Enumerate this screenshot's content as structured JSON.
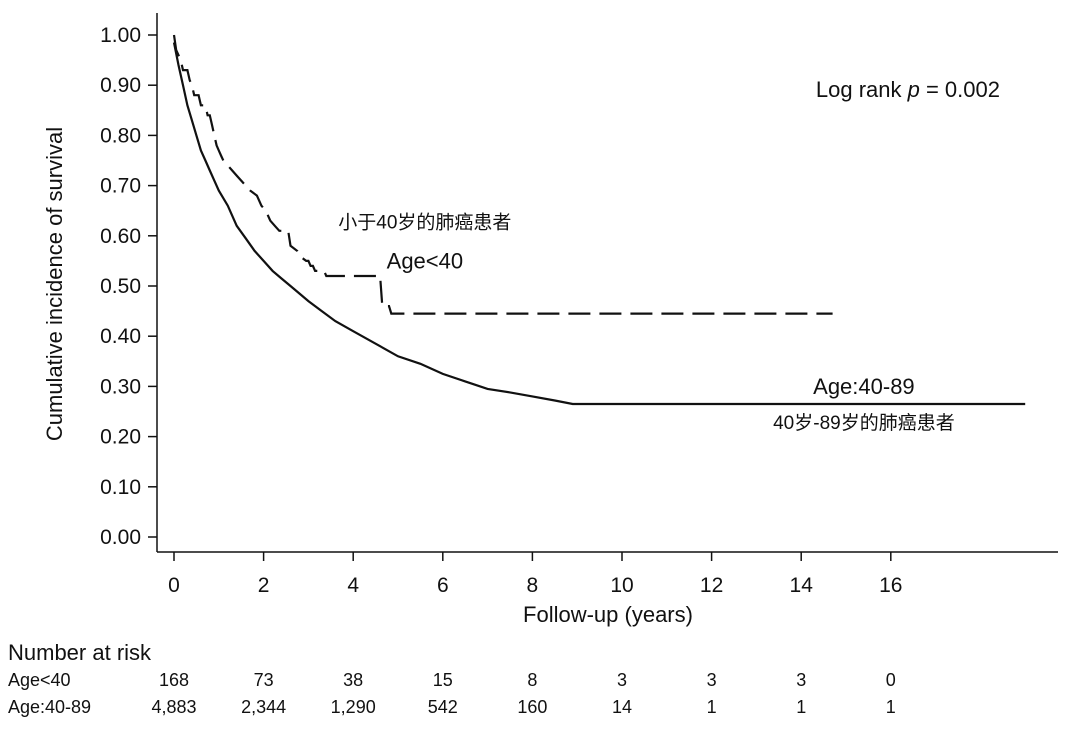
{
  "chart_data": {
    "type": "line",
    "subtype": "kaplan-meier",
    "title": "",
    "xlabel": "Follow-up (years)",
    "ylabel": "Cumulative incidence of survival",
    "xlim": [
      0,
      19.4
    ],
    "ylim": [
      0,
      1
    ],
    "x_ticks": [
      0,
      2,
      4,
      6,
      8,
      10,
      12,
      14,
      16
    ],
    "y_ticks": [
      0,
      0.1,
      0.2,
      0.3,
      0.4,
      0.5,
      0.6,
      0.7,
      0.8,
      0.9,
      1.0
    ],
    "y_tick_labels": [
      "0.00",
      "0.10",
      "0.20",
      "0.30",
      "0.40",
      "0.50",
      "0.60",
      "0.70",
      "0.80",
      "0.90",
      "1.00"
    ],
    "grid": false,
    "annotation": {
      "prefix": "Log rank ",
      "symbol": "p",
      "suffix": " = 0.002"
    },
    "series": [
      {
        "name": "Age<40",
        "label_zh": "小于40岁的肺癌患者",
        "style": "dashed",
        "label_at": [
          5.6,
          0.535
        ],
        "label_zh_at": [
          5.6,
          0.615
        ],
        "points": [
          [
            0,
            1.0
          ],
          [
            0.05,
            0.97
          ],
          [
            0.15,
            0.95
          ],
          [
            0.2,
            0.93
          ],
          [
            0.3,
            0.93
          ],
          [
            0.35,
            0.91
          ],
          [
            0.4,
            0.9
          ],
          [
            0.45,
            0.88
          ],
          [
            0.55,
            0.88
          ],
          [
            0.6,
            0.86
          ],
          [
            0.7,
            0.86
          ],
          [
            0.75,
            0.84
          ],
          [
            0.8,
            0.84
          ],
          [
            0.85,
            0.82
          ],
          [
            0.9,
            0.8
          ],
          [
            0.95,
            0.78
          ],
          [
            1.0,
            0.77
          ],
          [
            1.05,
            0.76
          ],
          [
            1.1,
            0.75
          ],
          [
            1.2,
            0.74
          ],
          [
            1.3,
            0.73
          ],
          [
            1.4,
            0.72
          ],
          [
            1.5,
            0.71
          ],
          [
            1.6,
            0.7
          ],
          [
            1.7,
            0.69
          ],
          [
            1.85,
            0.68
          ],
          [
            1.95,
            0.66
          ],
          [
            2.05,
            0.65
          ],
          [
            2.15,
            0.63
          ],
          [
            2.25,
            0.62
          ],
          [
            2.35,
            0.61
          ],
          [
            2.55,
            0.61
          ],
          [
            2.6,
            0.58
          ],
          [
            2.75,
            0.57
          ],
          [
            2.8,
            0.56
          ],
          [
            2.95,
            0.55
          ],
          [
            3.0,
            0.55
          ],
          [
            3.05,
            0.54
          ],
          [
            3.1,
            0.54
          ],
          [
            3.15,
            0.53
          ],
          [
            3.35,
            0.53
          ],
          [
            3.4,
            0.52
          ],
          [
            4.6,
            0.52
          ],
          [
            4.65,
            0.46
          ],
          [
            4.8,
            0.46
          ],
          [
            4.85,
            0.445
          ],
          [
            14.7,
            0.445
          ]
        ]
      },
      {
        "name": "Age:40-89",
        "label_zh": "40岁-89岁的肺癌患者",
        "style": "solid",
        "label_at": [
          15.4,
          0.285
        ],
        "label_zh_at": [
          15.4,
          0.215
        ],
        "points": [
          [
            0,
            0.985
          ],
          [
            0.1,
            0.94
          ],
          [
            0.2,
            0.9
          ],
          [
            0.3,
            0.86
          ],
          [
            0.4,
            0.83
          ],
          [
            0.5,
            0.8
          ],
          [
            0.6,
            0.77
          ],
          [
            0.7,
            0.75
          ],
          [
            0.8,
            0.73
          ],
          [
            0.9,
            0.71
          ],
          [
            1.0,
            0.69
          ],
          [
            1.2,
            0.66
          ],
          [
            1.4,
            0.62
          ],
          [
            1.6,
            0.595
          ],
          [
            1.8,
            0.57
          ],
          [
            2.0,
            0.55
          ],
          [
            2.2,
            0.53
          ],
          [
            2.4,
            0.515
          ],
          [
            2.6,
            0.5
          ],
          [
            2.8,
            0.485
          ],
          [
            3.0,
            0.47
          ],
          [
            3.3,
            0.45
          ],
          [
            3.6,
            0.43
          ],
          [
            4.0,
            0.41
          ],
          [
            4.5,
            0.385
          ],
          [
            5.0,
            0.36
          ],
          [
            5.5,
            0.345
          ],
          [
            6.0,
            0.325
          ],
          [
            6.5,
            0.31
          ],
          [
            7.0,
            0.295
          ],
          [
            7.5,
            0.288
          ],
          [
            8.0,
            0.28
          ],
          [
            8.5,
            0.272
          ],
          [
            8.9,
            0.265
          ],
          [
            19.0,
            0.265
          ]
        ]
      }
    ]
  },
  "risk_table": {
    "title": "Number at risk",
    "time_points": [
      0,
      2,
      4,
      6,
      8,
      10,
      12,
      14,
      16
    ],
    "rows": [
      {
        "label": "Age<40",
        "values": [
          "168",
          "73",
          "38",
          "15",
          "8",
          "3",
          "3",
          "3",
          "0"
        ]
      },
      {
        "label": "Age:40-89",
        "values": [
          "4,883",
          "2,344",
          "1,290",
          "542",
          "160",
          "14",
          "1",
          "1",
          "1"
        ]
      }
    ]
  }
}
